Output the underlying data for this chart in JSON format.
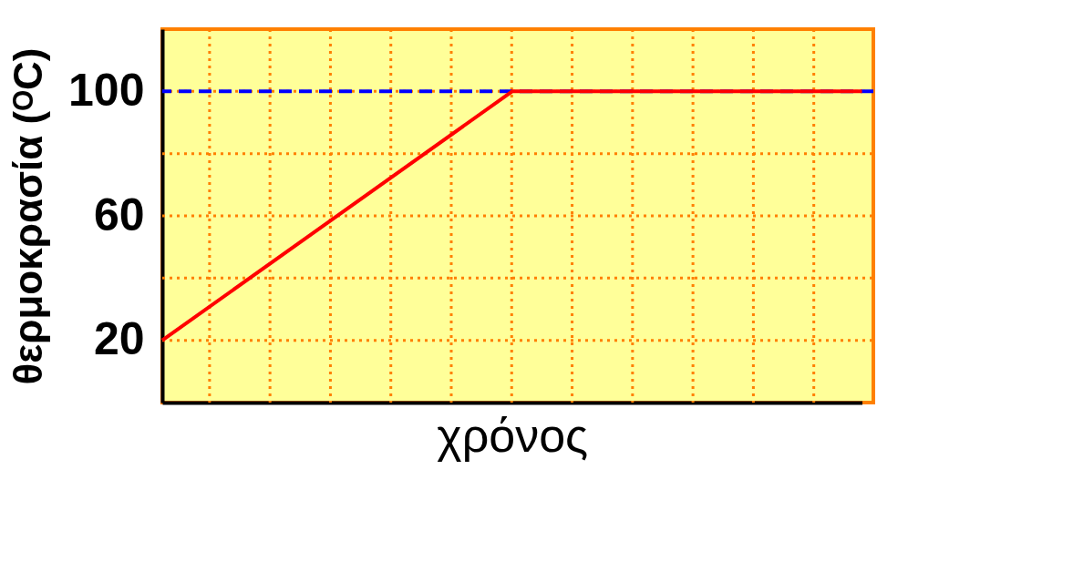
{
  "chart_data": {
    "type": "line",
    "xlabel": "χρόνος",
    "ylabel": "θερμοκρασία (ᴼC)",
    "categories": [
      null,
      null,
      null
    ],
    "series": [
      {
        "color": "#ff0000",
        "values": [
          20,
          100,
          100
        ]
      }
    ],
    "ylim": [
      0,
      120
    ],
    "yticks": [
      20,
      {
        "value": 40,
        "label": null
      },
      60,
      {
        "value": 80,
        "label": null
      },
      100
    ],
    "ref_lines": [
      {
        "axis": "y",
        "value": 100,
        "color": "#0000ff",
        "line_style": "dashed"
      }
    ],
    "grid": true,
    "marker": "none",
    "line_style": "solid"
  }
}
